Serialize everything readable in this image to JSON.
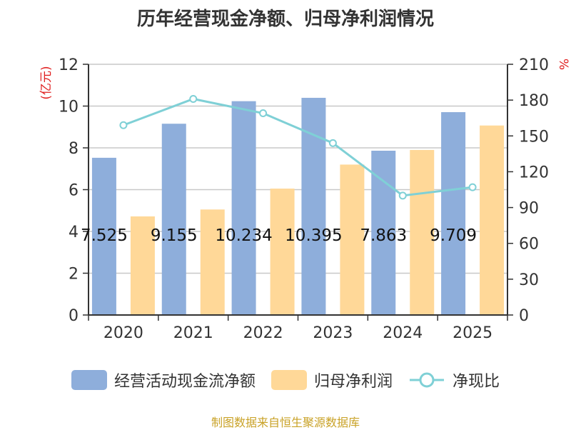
{
  "chart_data": {
    "type": "bar",
    "title": "历年经营现金净额、归母净利润情况",
    "categories": [
      "2020",
      "2021",
      "2022",
      "2023",
      "2024",
      "2025"
    ],
    "y_left": {
      "label": "(亿元)",
      "ticks": [
        0,
        2,
        4,
        6,
        8,
        10,
        12
      ],
      "ylim": [
        0,
        12
      ]
    },
    "y_right": {
      "label": "%",
      "ticks": [
        0,
        30,
        60,
        90,
        120,
        150,
        180,
        210
      ],
      "ylim": [
        0,
        210
      ]
    },
    "series": [
      {
        "name": "经营活动现金流净额",
        "type": "bar",
        "axis": "left",
        "color": "#8eaedb",
        "values": [
          7.525,
          9.155,
          10.234,
          10.395,
          7.863,
          9.709
        ],
        "data_labels": [
          "7.525",
          "9.155",
          "10.234",
          "10.395",
          "7.863",
          "9.709"
        ]
      },
      {
        "name": "归母净利润",
        "type": "bar",
        "axis": "left",
        "color": "#ffd898",
        "values": [
          4.72,
          5.05,
          6.05,
          7.2,
          7.9,
          9.07
        ]
      },
      {
        "name": "净现比",
        "type": "line",
        "axis": "right",
        "color": "#7fd0d6",
        "values": [
          159,
          181,
          169,
          144,
          100,
          107
        ]
      }
    ],
    "legend_position": "bottom",
    "grid": true
  },
  "source": "制图数据来自恒生聚源数据库"
}
